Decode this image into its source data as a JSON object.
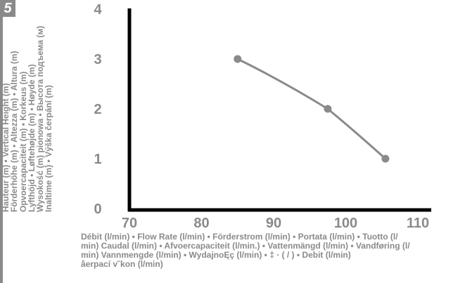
{
  "badge": "5",
  "chart_data": {
    "type": "line",
    "title": "",
    "ylabel_lines": [
      "Hauteur (m) • Vertical Height (m)",
      "Förderhöhe (m) • Altezza (m) • Altura (m)",
      "Opvoercapaciteit (m) • Korkeus (m)",
      "Lyfthöjd • Løftehøjde (m) • Høyde (m)",
      "Wysokość (m) pionowa • Высота подъема (м)",
      "Inaltime (m) • Výška čerpání (m)"
    ],
    "xlabel_lines": [
      "Débit (l/min) • Flow Rate (l/min) • Förderstrom (l/min) • Portata (l/min) • Tuotto (l/",
      "min) Caudal (l/min) • Afvoercapaciteit (l/min.) • Vattenmängd (l/min) • Vandføring (l/",
      "min) Vannmengde (l/min) • WydajnoĘç (l/min) •  ‡  ·  ( / ) • Debit (l/min)",
      "âerpací v˘kon (l/min)"
    ],
    "x_ticks": [
      "70",
      "80",
      "90",
      "100",
      "110"
    ],
    "y_ticks": [
      "0",
      "1",
      "2",
      "3",
      "4"
    ],
    "xlim": [
      70,
      110
    ],
    "ylim": [
      0,
      4
    ],
    "grid": false,
    "series": [
      {
        "x": [
          85,
          97.5,
          105.5
        ],
        "y": [
          3,
          2,
          1
        ]
      }
    ],
    "colors": {
      "axis": "#000000",
      "curve": "#8a8a8a",
      "text": "#8a8a8a"
    }
  }
}
